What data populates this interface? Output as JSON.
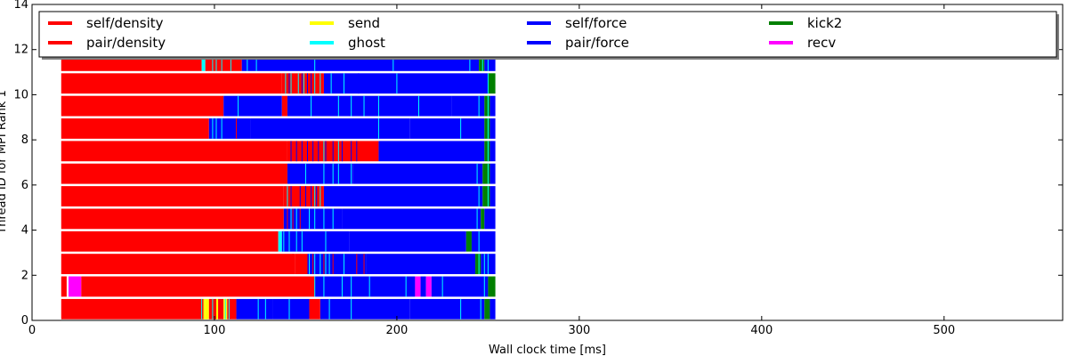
{
  "chart_data": {
    "type": "bar",
    "orientation": "horizontal",
    "xlabel": "Wall clock time [ms]",
    "ylabel": "Thread ID for MPI Rank 1",
    "xlim": [
      0,
      565
    ],
    "ylim": [
      0,
      14
    ],
    "xticks": [
      0,
      100,
      200,
      300,
      400,
      500
    ],
    "yticks": [
      0,
      2,
      4,
      6,
      8,
      10,
      12,
      14
    ],
    "grid": false,
    "legend_placement": "top",
    "legend": [
      {
        "label": "self/density",
        "color": "#ff0000"
      },
      {
        "label": "pair/density",
        "color": "#ff0000"
      },
      {
        "label": "send",
        "color": "#ffff00"
      },
      {
        "label": "ghost",
        "color": "#00ffff"
      },
      {
        "label": "self/force",
        "color": "#0000ff"
      },
      {
        "label": "pair/force",
        "color": "#0000ff"
      },
      {
        "label": "kick2",
        "color": "#008000"
      },
      {
        "label": "recv",
        "color": "#ff00ff"
      }
    ],
    "threads": [
      {
        "thread": 0,
        "segments": [
          [
            16,
            94,
            "#ff0000"
          ],
          [
            94,
            95,
            "#ffff00"
          ],
          [
            95,
            97,
            "#ffff00"
          ],
          [
            97,
            101,
            "#ff0000"
          ],
          [
            101,
            102,
            "#ffff00"
          ],
          [
            102,
            105,
            "#ff0000"
          ],
          [
            105,
            107,
            "#ffff00"
          ],
          [
            107,
            112,
            "#ff0000"
          ],
          [
            112,
            132,
            "#0000ff"
          ],
          [
            132,
            152,
            "#0000ff"
          ],
          [
            152,
            158,
            "#ff0000"
          ],
          [
            158,
            207,
            "#0000ff"
          ],
          [
            207,
            248,
            "#0000ff"
          ],
          [
            248,
            251,
            "#008000"
          ],
          [
            251,
            254,
            "#0000ff"
          ]
        ]
      },
      {
        "thread": 1,
        "segments": [
          [
            16,
            19,
            "#ff0000"
          ],
          [
            19,
            20,
            "#ffffff"
          ],
          [
            20,
            27,
            "#ff00ff"
          ],
          [
            27,
            155,
            "#ff0000"
          ],
          [
            155,
            185,
            "#0000ff"
          ],
          [
            185,
            210,
            "#0000ff"
          ],
          [
            210,
            213,
            "#ff00ff"
          ],
          [
            213,
            216,
            "#0000ff"
          ],
          [
            216,
            219,
            "#ff00ff"
          ],
          [
            219,
            250,
            "#0000ff"
          ],
          [
            250,
            254,
            "#008000"
          ]
        ]
      },
      {
        "thread": 2,
        "segments": [
          [
            16,
            144,
            "#ff0000"
          ],
          [
            144,
            151,
            "#ff0000"
          ],
          [
            151,
            183,
            "#0000ff"
          ],
          [
            183,
            243,
            "#0000ff"
          ],
          [
            243,
            246,
            "#008000"
          ],
          [
            246,
            254,
            "#0000ff"
          ]
        ]
      },
      {
        "thread": 3,
        "segments": [
          [
            16,
            135,
            "#ff0000"
          ],
          [
            135,
            137,
            "#00ffff"
          ],
          [
            137,
            174,
            "#0000ff"
          ],
          [
            174,
            238,
            "#0000ff"
          ],
          [
            238,
            241,
            "#008000"
          ],
          [
            241,
            254,
            "#0000ff"
          ]
        ]
      },
      {
        "thread": 4,
        "segments": [
          [
            16,
            138,
            "#ff0000"
          ],
          [
            138,
            170,
            "#0000ff"
          ],
          [
            170,
            246,
            "#0000ff"
          ],
          [
            246,
            248,
            "#008000"
          ],
          [
            248,
            254,
            "#0000ff"
          ]
        ]
      },
      {
        "thread": 5,
        "segments": [
          [
            16,
            138,
            "#ff0000"
          ],
          [
            138,
            160,
            "#ff0000"
          ],
          [
            160,
            247,
            "#0000ff"
          ],
          [
            247,
            251,
            "#008000"
          ],
          [
            251,
            254,
            "#0000ff"
          ]
        ]
      },
      {
        "thread": 6,
        "segments": [
          [
            16,
            140,
            "#ff0000"
          ],
          [
            140,
            176,
            "#0000ff"
          ],
          [
            176,
            247,
            "#0000ff"
          ],
          [
            247,
            251,
            "#008000"
          ],
          [
            251,
            254,
            "#0000ff"
          ]
        ]
      },
      {
        "thread": 7,
        "segments": [
          [
            16,
            140,
            "#ff0000"
          ],
          [
            140,
            190,
            "#ff0000"
          ],
          [
            190,
            248,
            "#0000ff"
          ],
          [
            248,
            251,
            "#008000"
          ],
          [
            251,
            254,
            "#0000ff"
          ]
        ]
      },
      {
        "thread": 8,
        "segments": [
          [
            16,
            97,
            "#ff0000"
          ],
          [
            97,
            120,
            "#0000ff"
          ],
          [
            120,
            207,
            "#0000ff"
          ],
          [
            207,
            248,
            "#0000ff"
          ],
          [
            248,
            251,
            "#008000"
          ],
          [
            251,
            254,
            "#0000ff"
          ]
        ]
      },
      {
        "thread": 9,
        "segments": [
          [
            16,
            105,
            "#ff0000"
          ],
          [
            105,
            137,
            "#0000ff"
          ],
          [
            137,
            140,
            "#ff0000"
          ],
          [
            140,
            230,
            "#0000ff"
          ],
          [
            230,
            248,
            "#0000ff"
          ],
          [
            248,
            251,
            "#008000"
          ],
          [
            251,
            254,
            "#0000ff"
          ]
        ]
      },
      {
        "thread": 10,
        "segments": [
          [
            16,
            137,
            "#ff0000"
          ],
          [
            137,
            160,
            "#ff0000"
          ],
          [
            160,
            200,
            "#0000ff"
          ],
          [
            200,
            250,
            "#0000ff"
          ],
          [
            250,
            254,
            "#008000"
          ]
        ]
      },
      {
        "thread": 11,
        "segments": [
          [
            16,
            93,
            "#ff0000"
          ],
          [
            93,
            95,
            "#00ffff"
          ],
          [
            95,
            115,
            "#ff0000"
          ],
          [
            115,
            155,
            "#0000ff"
          ],
          [
            155,
            245,
            "#0000ff"
          ],
          [
            245,
            248,
            "#008000"
          ],
          [
            248,
            254,
            "#0000ff"
          ]
        ]
      }
    ],
    "thin_lines": [
      {
        "thread": 0,
        "x": [
          93,
          99,
          106,
          108,
          124,
          128,
          141,
          163,
          175,
          235,
          246
        ],
        "color": "#00ffff"
      },
      {
        "thread": 1,
        "x": [
          155,
          160,
          170,
          175,
          185,
          205,
          225,
          248
        ],
        "color": "#00ffff"
      },
      {
        "thread": 2,
        "x": [
          152,
          155,
          158,
          161,
          163,
          171,
          245,
          248,
          250
        ],
        "color": "#00ffff"
      },
      {
        "thread": 2,
        "x": [
          143,
          154,
          160,
          165,
          178,
          182
        ],
        "color": "#ff0000"
      },
      {
        "thread": 3,
        "x": [
          138,
          141,
          145,
          148,
          161,
          245
        ],
        "color": "#00ffff"
      },
      {
        "thread": 4,
        "x": [
          142,
          145,
          152,
          155,
          160,
          165,
          244
        ],
        "color": "#00ffff"
      },
      {
        "thread": 4,
        "x": [
          140,
          143,
          147
        ],
        "color": "#ff0000"
      },
      {
        "thread": 5,
        "x": [
          140,
          155,
          158,
          245,
          250
        ],
        "color": "#00ffff"
      },
      {
        "thread": 5,
        "x": [
          142,
          147,
          150,
          153,
          156
        ],
        "color": "#0000ff"
      },
      {
        "thread": 6,
        "x": [
          150,
          160,
          165,
          168,
          175,
          244,
          250
        ],
        "color": "#00ffff"
      },
      {
        "thread": 7,
        "x": [
          142,
          145,
          148,
          151,
          154,
          157,
          161,
          165,
          170,
          175,
          178,
          246
        ],
        "color": "#0000ff"
      },
      {
        "thread": 7,
        "x": [
          160,
          168,
          250
        ],
        "color": "#00ffff"
      },
      {
        "thread": 8,
        "x": [
          99,
          101,
          104,
          190,
          235,
          250
        ],
        "color": "#00ffff"
      },
      {
        "thread": 8,
        "x": [
          112
        ],
        "color": "#ff0000"
      },
      {
        "thread": 9,
        "x": [
          113,
          153,
          168,
          175,
          182,
          190,
          212,
          245,
          250
        ],
        "color": "#00ffff"
      },
      {
        "thread": 10,
        "x": [
          139,
          142,
          146,
          149,
          155,
          158,
          164,
          171,
          200,
          250
        ],
        "color": "#00ffff"
      },
      {
        "thread": 10,
        "x": [
          141,
          148,
          151,
          153,
          179
        ],
        "color": "#0000ff"
      },
      {
        "thread": 11,
        "x": [
          99,
          101,
          104,
          109,
          118,
          123,
          155,
          198,
          240,
          247,
          250
        ],
        "color": "#00ffff"
      }
    ]
  }
}
